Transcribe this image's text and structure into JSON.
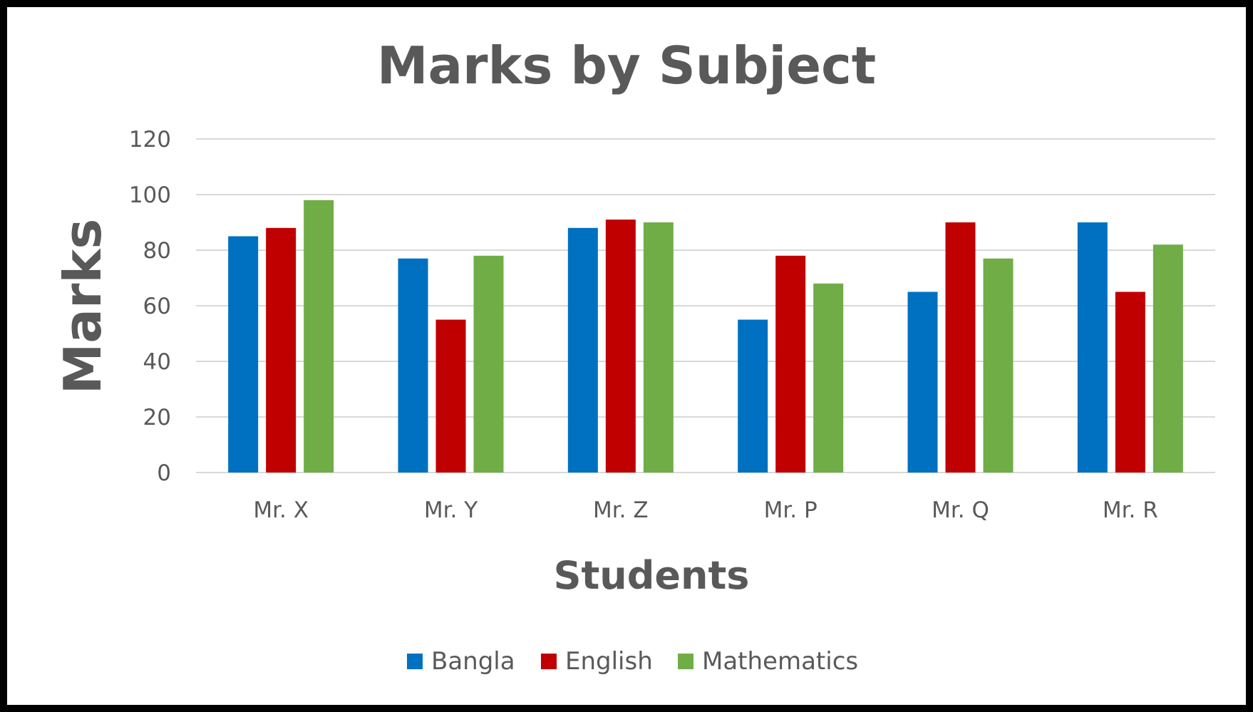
{
  "chart_data": {
    "type": "bar",
    "title": "Marks by Subject",
    "xlabel": "Students",
    "ylabel": "Marks",
    "categories": [
      "Mr. X",
      "Mr. Y",
      "Mr. Z",
      "Mr. P",
      "Mr. Q",
      "Mr. R"
    ],
    "series": [
      {
        "name": "Bangla",
        "color": "#0070C0",
        "values": [
          85,
          77,
          88,
          55,
          65,
          90
        ]
      },
      {
        "name": "English",
        "color": "#C00000",
        "values": [
          88,
          55,
          91,
          78,
          90,
          65
        ]
      },
      {
        "name": "Mathematics",
        "color": "#70AD47",
        "values": [
          98,
          78,
          90,
          68,
          77,
          82
        ]
      }
    ],
    "ylim": [
      0,
      120
    ],
    "yticks": [
      "0",
      "20",
      "40",
      "60",
      "80",
      "100",
      "120"
    ],
    "grid": true,
    "legend_position": "bottom"
  }
}
